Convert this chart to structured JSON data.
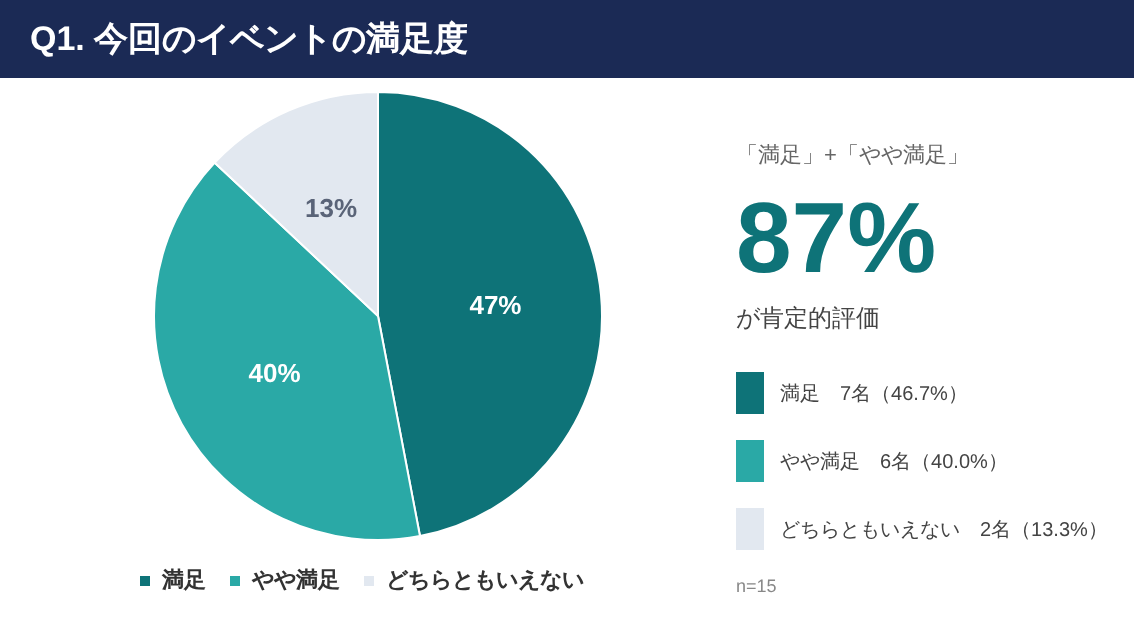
{
  "chart_data": {
    "type": "pie",
    "title": "Q1. 今回のイベントの満足度",
    "categories": [
      "満足",
      "やや満足",
      "どちらともいえない"
    ],
    "values": [
      47,
      40,
      13
    ],
    "colors": [
      "#0e7378",
      "#2aa9a6",
      "#e2e8f0"
    ],
    "value_labels": [
      "47%",
      "40%",
      "13%"
    ],
    "legend": "bottom",
    "annotations": [
      "「満足」+「やや満足」",
      "87%",
      "が肯定的評価",
      "満足　7名（46.7%）",
      "やや満足　6名（40.0%）",
      "どちらともいえない　2名（13.3%）",
      "n=15"
    ]
  }
}
